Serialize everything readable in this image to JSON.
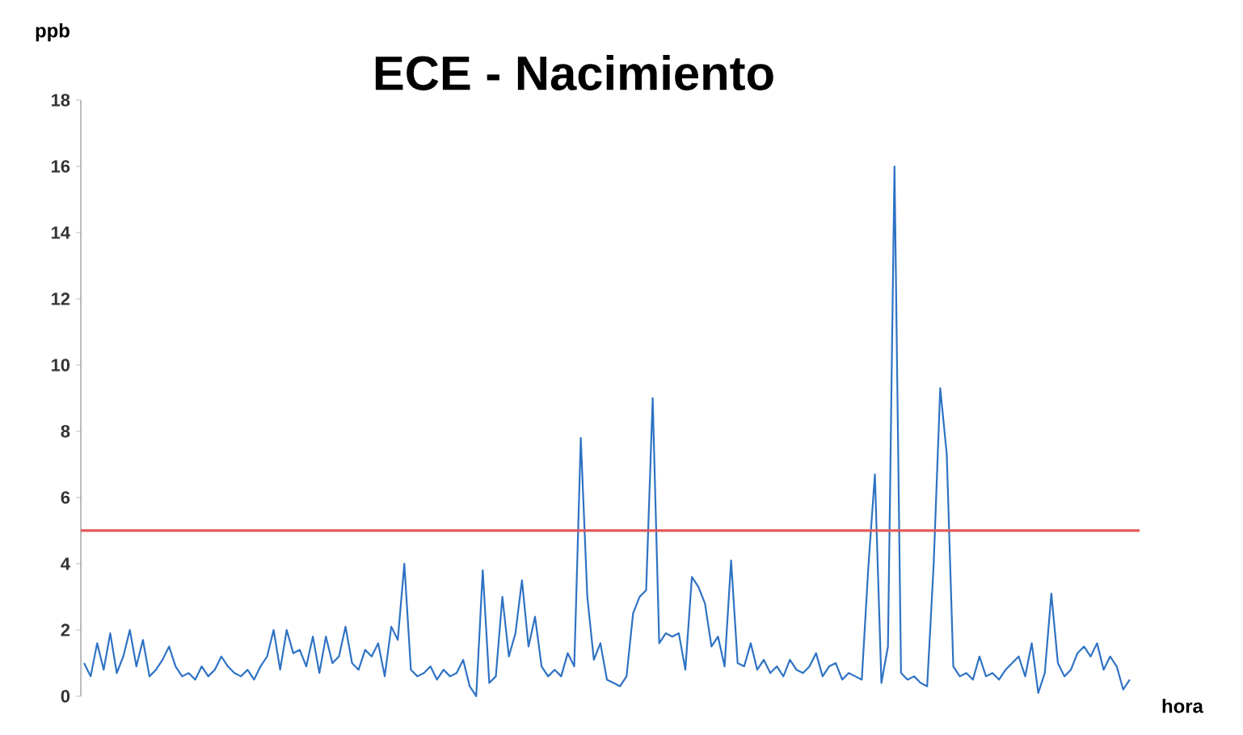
{
  "chart_data": {
    "type": "line",
    "title": "ECE - Nacimiento",
    "xlabel": "hora",
    "ylabel": "ppb",
    "categories": [
      null,
      null,
      null,
      null,
      null,
      null,
      null,
      null,
      null,
      null,
      null,
      null,
      null,
      null,
      null,
      null,
      null,
      null,
      null,
      null,
      null,
      null,
      null,
      null,
      null,
      null,
      null,
      null,
      null,
      null,
      null,
      null,
      null,
      null,
      null,
      null,
      null,
      null,
      null,
      null,
      null,
      null,
      null,
      null,
      null,
      null,
      null,
      null,
      null,
      null,
      null,
      null,
      null,
      null,
      null,
      null,
      null,
      null,
      null,
      null,
      null,
      null,
      null,
      null,
      null,
      null,
      null,
      null,
      null,
      null,
      null,
      null,
      null,
      null,
      null,
      null,
      null,
      null,
      null,
      null,
      null,
      null,
      null,
      null,
      null,
      null,
      null,
      null,
      null,
      null,
      null,
      null,
      null,
      null,
      null,
      null,
      null,
      null,
      null,
      null,
      null,
      null,
      null,
      null,
      null,
      null,
      null,
      null,
      null,
      null,
      null,
      null,
      null,
      null,
      null,
      null,
      null,
      null,
      null,
      null,
      null,
      null,
      null,
      null,
      null,
      null,
      null,
      null,
      null,
      null,
      null,
      null,
      null,
      null,
      null,
      null,
      null,
      null,
      null,
      null,
      null,
      null,
      null,
      null,
      null,
      null,
      null,
      null,
      null,
      null,
      null,
      null,
      null,
      null,
      null,
      null,
      null,
      null,
      null,
      null,
      null
    ],
    "series": [
      {
        "color": "#2e72c4",
        "values": [
          1.0,
          0.6,
          1.6,
          0.8,
          1.9,
          0.7,
          1.2,
          2.0,
          0.9,
          1.7,
          0.6,
          0.8,
          1.1,
          1.5,
          0.9,
          0.6,
          0.7,
          0.5,
          0.9,
          0.6,
          0.8,
          1.2,
          0.9,
          0.7,
          0.6,
          0.8,
          0.5,
          0.9,
          1.2,
          2.0,
          0.8,
          2.0,
          1.3,
          1.4,
          0.9,
          1.8,
          0.7,
          1.8,
          1.0,
          1.2,
          2.1,
          1.0,
          0.8,
          1.4,
          1.2,
          1.6,
          0.6,
          2.1,
          1.7,
          4.0,
          0.8,
          0.6,
          0.7,
          0.9,
          0.5,
          0.8,
          0.6,
          0.7,
          1.1,
          0.3,
          0.0,
          3.8,
          0.4,
          0.6,
          3.0,
          1.2,
          1.9,
          3.5,
          1.5,
          2.4,
          0.9,
          0.6,
          0.8,
          0.6,
          1.3,
          0.9,
          7.8,
          3.0,
          1.1,
          1.6,
          0.5,
          0.4,
          0.3,
          0.6,
          2.5,
          3.0,
          3.2,
          9.0,
          1.6,
          1.9,
          1.8,
          1.9,
          0.8,
          3.6,
          3.3,
          2.8,
          1.5,
          1.8,
          0.9,
          4.1,
          1.0,
          0.9,
          1.6,
          0.8,
          1.1,
          0.7,
          0.9,
          0.6,
          1.1,
          0.8,
          0.7,
          0.9,
          1.3,
          0.6,
          0.9,
          1.0,
          0.5,
          0.7,
          0.6,
          0.5,
          3.9,
          6.7,
          0.4,
          1.5,
          16.0,
          0.7,
          0.5,
          0.6,
          0.4,
          0.3,
          4.0,
          9.3,
          7.3,
          0.9,
          0.6,
          0.7,
          0.5,
          1.2,
          0.6,
          0.7,
          0.5,
          0.8,
          1.0,
          1.2,
          0.6,
          1.6,
          0.1,
          0.7,
          3.1,
          1.0,
          0.6,
          0.8,
          1.3,
          1.5,
          1.2,
          1.6,
          0.8,
          1.2,
          0.9,
          0.2,
          0.5
        ]
      }
    ],
    "ylim": [
      0,
      18
    ],
    "yticks": [
      0,
      2,
      4,
      6,
      8,
      10,
      12,
      14,
      16,
      18
    ],
    "ref_lines": [
      {
        "axis": "y",
        "value": 5,
        "color": "#e05a5a"
      }
    ],
    "grid": false,
    "legend": false,
    "marker": "none",
    "line_style": "solid"
  }
}
